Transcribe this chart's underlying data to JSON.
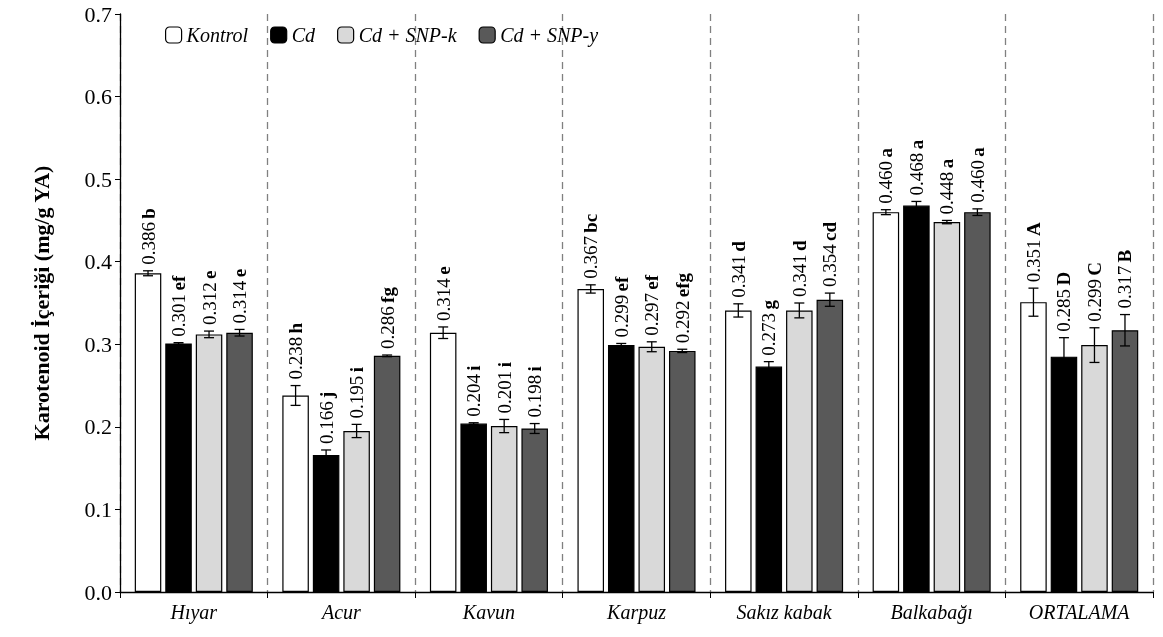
{
  "chart_data": {
    "type": "bar",
    "ylabel": "Karotenoid İçeriği (mg/g YA)",
    "categories": [
      "Hıyar",
      "Acur",
      "Kavun",
      "Karpuz",
      "Sakız kabak",
      "Balkabağı",
      "ORTALAMA"
    ],
    "series": [
      {
        "name": "Kontrol",
        "color": "#ffffff",
        "values": [
          0.386,
          0.238,
          0.314,
          0.367,
          0.341,
          0.46,
          0.351
        ],
        "errors": [
          0.003,
          0.012,
          0.007,
          0.005,
          0.008,
          0.003,
          0.017
        ],
        "value_labels": [
          "0.386 b",
          "0.238 h",
          "0.314 e",
          "0.367 bc",
          "0.341 d",
          "0.460 a",
          "0.351 A"
        ]
      },
      {
        "name": "Cd",
        "color": "#000000",
        "values": [
          0.301,
          0.166,
          0.204,
          0.299,
          0.273,
          0.468,
          0.285
        ],
        "errors": [
          0.001,
          0.006,
          0.001,
          0.002,
          0.006,
          0.005,
          0.023
        ],
        "value_labels": [
          "0.301 ef",
          "0.166 j",
          "0.204 i",
          "0.299 ef",
          "0.273 g",
          "0.468 a",
          "0.285 D"
        ]
      },
      {
        "name": "Cd + SNP-k",
        "color": "#d9d9d9",
        "values": [
          0.312,
          0.195,
          0.201,
          0.297,
          0.341,
          0.448,
          0.299
        ],
        "errors": [
          0.004,
          0.008,
          0.008,
          0.006,
          0.009,
          0.002,
          0.021
        ],
        "value_labels": [
          "0.312 e",
          "0.195 i",
          "0.201 i",
          "0.297 ef",
          "0.341 d",
          "0.448 a",
          "0.299 C"
        ]
      },
      {
        "name": "Cd + SNP-y",
        "color": "#595959",
        "values": [
          0.314,
          0.286,
          0.198,
          0.292,
          0.354,
          0.46,
          0.317
        ],
        "errors": [
          0.004,
          0.001,
          0.006,
          0.002,
          0.008,
          0.004,
          0.019
        ],
        "value_labels": [
          "0.314 e",
          "0.286 fg",
          "0.198 i",
          "0.292 efg",
          "0.354 cd",
          "0.460 a",
          "0.317 B"
        ]
      }
    ],
    "ylim": [
      0,
      0.7
    ],
    "yticks": [
      {
        "value": 0,
        "label": "0.0"
      },
      {
        "value": 0.1,
        "label": "0.1"
      },
      {
        "value": 0.2,
        "label": "0.2"
      },
      {
        "value": 0.3,
        "label": "0.3"
      },
      {
        "value": 0.4,
        "label": "0.4"
      },
      {
        "value": 0.5,
        "label": "0.5"
      },
      {
        "value": 0.6,
        "label": "0.6"
      },
      {
        "value": 0.7,
        "label": "0.7"
      }
    ],
    "grid": "x",
    "legend": "top left"
  }
}
